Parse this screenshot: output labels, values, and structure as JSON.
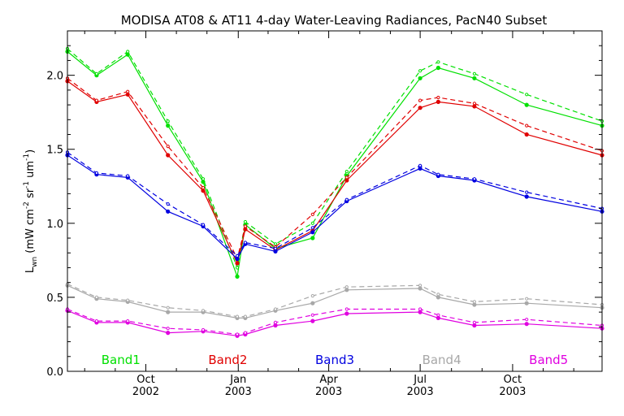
{
  "chart_data": {
    "type": "line",
    "title": "MODISA AT08 & AT11 4-day Water-Leaving Radiances, PacN40 Subset",
    "ylabel": "L_wn (mW cm^-2 sr^-1 um^-1)",
    "ylabel_parts": {
      "l": "L",
      "sub": "wn",
      "units_open": " (mW cm",
      "e1": "-2",
      "sr": " sr",
      "e2": "-1",
      "um": " um",
      "e3": "-1",
      "close": ")"
    },
    "xlabel": "",
    "ylim": [
      0.0,
      2.3
    ],
    "xlim_days": [
      0,
      532
    ],
    "grid": false,
    "y_ticks": [
      {
        "value": 0.0,
        "label": "0.0"
      },
      {
        "value": 0.5,
        "label": "0.5"
      },
      {
        "value": 1.0,
        "label": "1.0"
      },
      {
        "value": 1.5,
        "label": "1.5"
      },
      {
        "value": 2.0,
        "label": "2.0"
      }
    ],
    "x_ticks": [
      {
        "day": 78,
        "month": "Oct",
        "year": "2002"
      },
      {
        "day": 170,
        "month": "Jan",
        "year": "2003"
      },
      {
        "day": 260,
        "month": "Apr",
        "year": "2003"
      },
      {
        "day": 351,
        "month": "Jul",
        "year": "2003"
      },
      {
        "day": 443,
        "month": "Oct",
        "year": "2003"
      }
    ],
    "x_minor_per_major": 3,
    "legend": [
      {
        "name": "Band1",
        "color": "#00e000"
      },
      {
        "name": "Band2",
        "color": "#e00000"
      },
      {
        "name": "Band3",
        "color": "#0000e0"
      },
      {
        "name": "Band4",
        "color": "#a8a8a8"
      },
      {
        "name": "Band5",
        "color": "#e000e0"
      }
    ],
    "legend_placement": "bottom, inside plot",
    "styles": {
      "AT08": "solid",
      "AT11": "dashed"
    },
    "x_days": [
      0,
      29,
      60,
      100,
      135,
      169,
      177,
      207,
      244,
      278,
      351,
      369,
      405,
      457,
      532
    ],
    "series": [
      {
        "name": "Band1",
        "instrument": "AT08",
        "values": [
          2.16,
          2.0,
          2.14,
          1.66,
          1.28,
          0.64,
          0.99,
          0.83,
          0.9,
          1.32,
          1.98,
          2.05,
          1.98,
          1.8,
          1.66
        ]
      },
      {
        "name": "Band1",
        "instrument": "AT11",
        "values": [
          2.18,
          2.01,
          2.16,
          1.69,
          1.3,
          0.7,
          1.01,
          0.86,
          1.0,
          1.35,
          2.03,
          2.09,
          2.01,
          1.87,
          1.69
        ]
      },
      {
        "name": "Band2",
        "instrument": "AT08",
        "values": [
          1.96,
          1.82,
          1.87,
          1.46,
          1.22,
          0.73,
          0.96,
          0.82,
          0.95,
          1.29,
          1.78,
          1.82,
          1.79,
          1.6,
          1.46
        ]
      },
      {
        "name": "Band2",
        "instrument": "AT11",
        "values": [
          1.98,
          1.83,
          1.89,
          1.52,
          1.24,
          0.76,
          0.98,
          0.84,
          1.06,
          1.31,
          1.83,
          1.85,
          1.81,
          1.66,
          1.49
        ]
      },
      {
        "name": "Band3",
        "instrument": "AT08",
        "values": [
          1.46,
          1.33,
          1.31,
          1.08,
          0.98,
          0.76,
          0.86,
          0.81,
          0.94,
          1.15,
          1.37,
          1.32,
          1.29,
          1.18,
          1.08
        ]
      },
      {
        "name": "Band3",
        "instrument": "AT11",
        "values": [
          1.48,
          1.34,
          1.32,
          1.13,
          0.99,
          0.78,
          0.87,
          0.83,
          0.97,
          1.16,
          1.39,
          1.33,
          1.3,
          1.21,
          1.1
        ]
      },
      {
        "name": "Band4",
        "instrument": "AT08",
        "values": [
          0.58,
          0.49,
          0.47,
          0.4,
          0.4,
          0.36,
          0.36,
          0.41,
          0.46,
          0.55,
          0.56,
          0.5,
          0.45,
          0.46,
          0.43
        ]
      },
      {
        "name": "Band4",
        "instrument": "AT11",
        "values": [
          0.59,
          0.5,
          0.48,
          0.43,
          0.41,
          0.37,
          0.37,
          0.42,
          0.51,
          0.57,
          0.58,
          0.52,
          0.47,
          0.49,
          0.45
        ]
      },
      {
        "name": "Band5",
        "instrument": "AT08",
        "values": [
          0.41,
          0.33,
          0.33,
          0.26,
          0.27,
          0.24,
          0.25,
          0.31,
          0.34,
          0.39,
          0.4,
          0.36,
          0.31,
          0.32,
          0.29
        ]
      },
      {
        "name": "Band5",
        "instrument": "AT11",
        "values": [
          0.42,
          0.34,
          0.34,
          0.29,
          0.28,
          0.25,
          0.26,
          0.33,
          0.38,
          0.42,
          0.42,
          0.38,
          0.33,
          0.35,
          0.31
        ]
      }
    ]
  }
}
